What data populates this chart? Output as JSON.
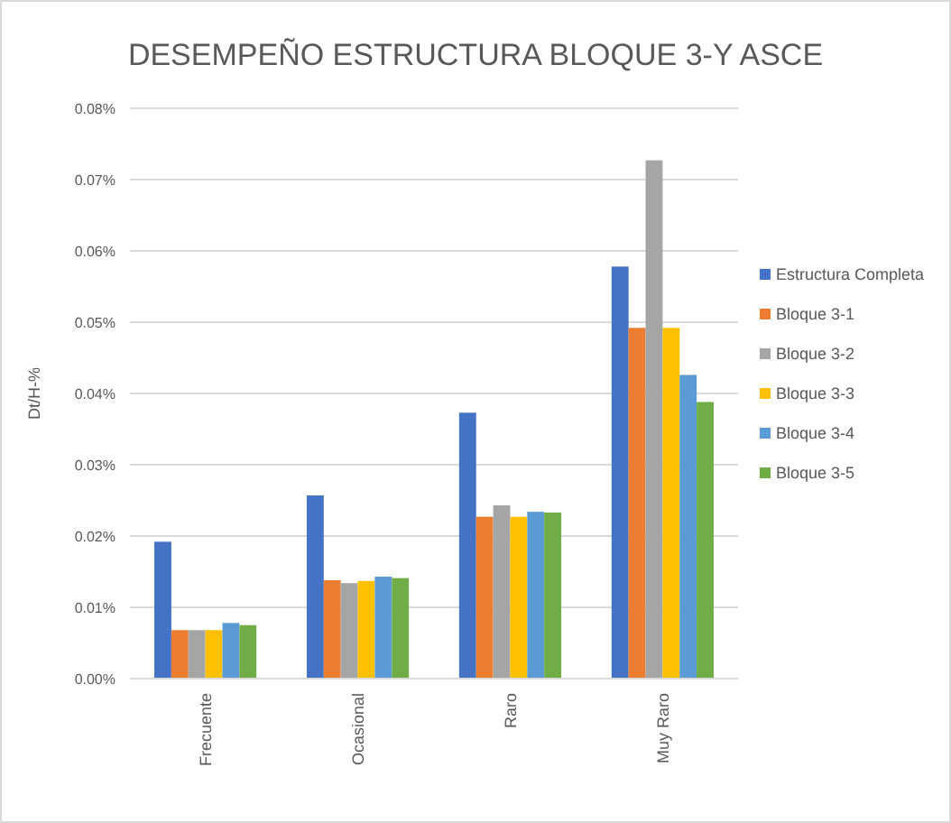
{
  "chart_data": {
    "type": "bar",
    "title": "DESEMPEÑO ESTRUCTURA BLOQUE 3-Y ASCE",
    "ylabel": "Dt/H-%",
    "categories": [
      "Frecuente",
      "Ocasional",
      "Raro",
      "Muy Raro"
    ],
    "series": [
      {
        "name": "Estructura Completa",
        "color": "#4472c4",
        "values": [
          0.0192,
          0.0257,
          0.0373,
          0.0578
        ]
      },
      {
        "name": "Bloque 3-1",
        "color": "#ed7d31",
        "values": [
          0.0068,
          0.0138,
          0.0227,
          0.0492
        ]
      },
      {
        "name": "Bloque 3-2",
        "color": "#a5a5a5",
        "values": [
          0.0068,
          0.0134,
          0.0243,
          0.0727
        ]
      },
      {
        "name": "Bloque 3-3",
        "color": "#ffc000",
        "values": [
          0.0068,
          0.0137,
          0.0227,
          0.0492
        ]
      },
      {
        "name": "Bloque 3-4",
        "color": "#5b9bd5",
        "values": [
          0.0078,
          0.0143,
          0.0234,
          0.0426
        ]
      },
      {
        "name": "Bloque 3-5",
        "color": "#70ad47",
        "values": [
          0.0075,
          0.0141,
          0.0233,
          0.0388
        ]
      }
    ],
    "ylim": [
      0,
      0.08
    ],
    "yticks": [
      {
        "value": 0,
        "label": "0.00%"
      },
      {
        "value": 0.01,
        "label": "0.01%"
      },
      {
        "value": 0.02,
        "label": "0.02%"
      },
      {
        "value": 0.03,
        "label": "0.03%"
      },
      {
        "value": 0.04,
        "label": "0.04%"
      },
      {
        "value": 0.05,
        "label": "0.05%"
      },
      {
        "value": 0.06,
        "label": "0.06%"
      },
      {
        "value": 0.07,
        "label": "0.07%"
      },
      {
        "value": 0.08,
        "label": "0.08%"
      }
    ],
    "grid": "y",
    "legend": "right"
  }
}
